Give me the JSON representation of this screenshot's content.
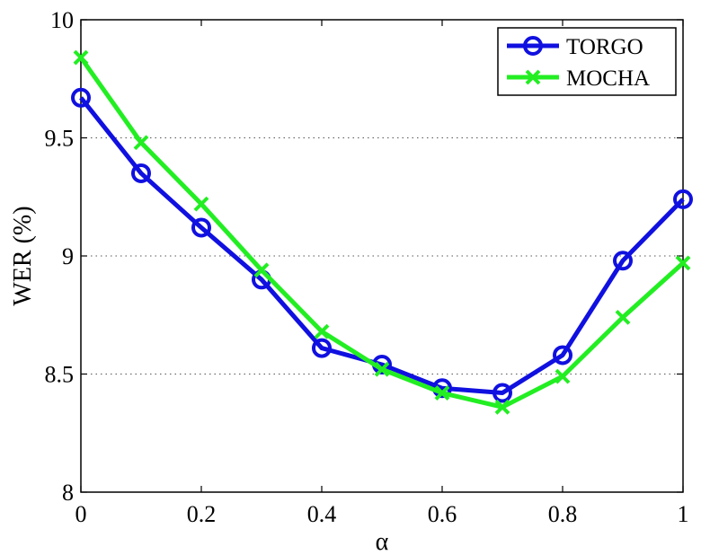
{
  "chart_data": {
    "type": "line",
    "title": "",
    "xlabel": "α",
    "ylabel": "WER (%)",
    "xlim": [
      0,
      1
    ],
    "ylim": [
      8,
      10
    ],
    "x": [
      0,
      0.1,
      0.2,
      0.3,
      0.4,
      0.5,
      0.6,
      0.7,
      0.8,
      0.9,
      1.0
    ],
    "x_ticks": [
      "0",
      "0.2",
      "0.4",
      "0.6",
      "0.8",
      "1"
    ],
    "x_tick_values": [
      0,
      0.2,
      0.4,
      0.6,
      0.8,
      1.0
    ],
    "y_ticks": [
      "8",
      "8.5",
      "9",
      "9.5",
      "10"
    ],
    "y_tick_values": [
      8,
      8.5,
      9,
      9.5,
      10
    ],
    "grid": "horizontal dotted",
    "legend_position": "top-right",
    "series": [
      {
        "name": "TORGO",
        "color": "#1010e0",
        "marker": "circle",
        "values": [
          9.67,
          9.35,
          9.12,
          8.9,
          8.61,
          8.54,
          8.44,
          8.42,
          8.58,
          8.98,
          9.24
        ]
      },
      {
        "name": "MOCHA",
        "color": "#22ee22",
        "marker": "x",
        "values": [
          9.84,
          9.48,
          9.22,
          8.94,
          8.68,
          8.52,
          8.42,
          8.36,
          8.49,
          8.74,
          8.97
        ]
      }
    ]
  }
}
